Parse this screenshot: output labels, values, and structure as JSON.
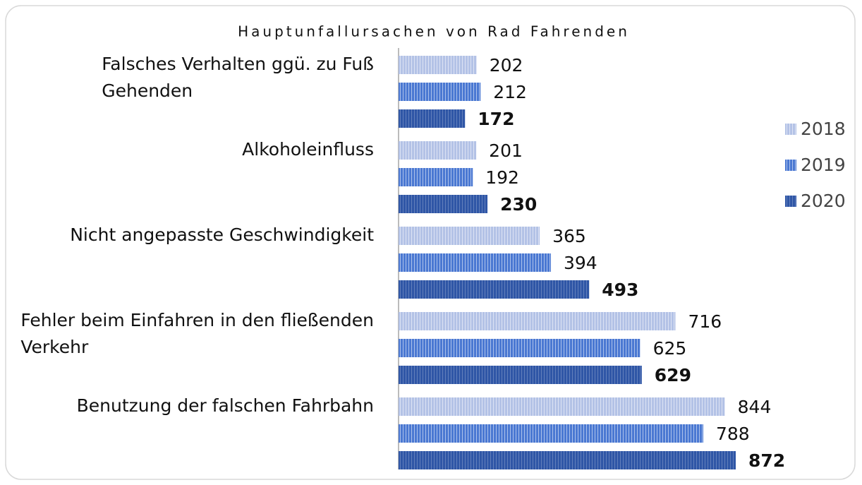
{
  "chart_data": {
    "type": "bar",
    "orientation": "horizontal",
    "title": "Hauptunfallursachen von Rad Fahrenden",
    "categories": [
      "Falsches Verhalten ggü. zu Fuß Gehenden",
      "Alkoholeinfluss",
      "Nicht angepasste Geschwindigkeit",
      "Fehler beim Einfahren in den fließenden Verkehr",
      "Benutzung der falschen Fahrbahn"
    ],
    "series": [
      {
        "name": "2018",
        "color": "#b3c2e6",
        "values": [
          202,
          201,
          365,
          716,
          844
        ]
      },
      {
        "name": "2019",
        "color": "#4a78d2",
        "values": [
          212,
          192,
          394,
          625,
          788
        ]
      },
      {
        "name": "2020",
        "color": "#2f56a6",
        "values": [
          172,
          230,
          493,
          629,
          872
        ]
      }
    ],
    "legend": "right",
    "data_labels": true
  }
}
